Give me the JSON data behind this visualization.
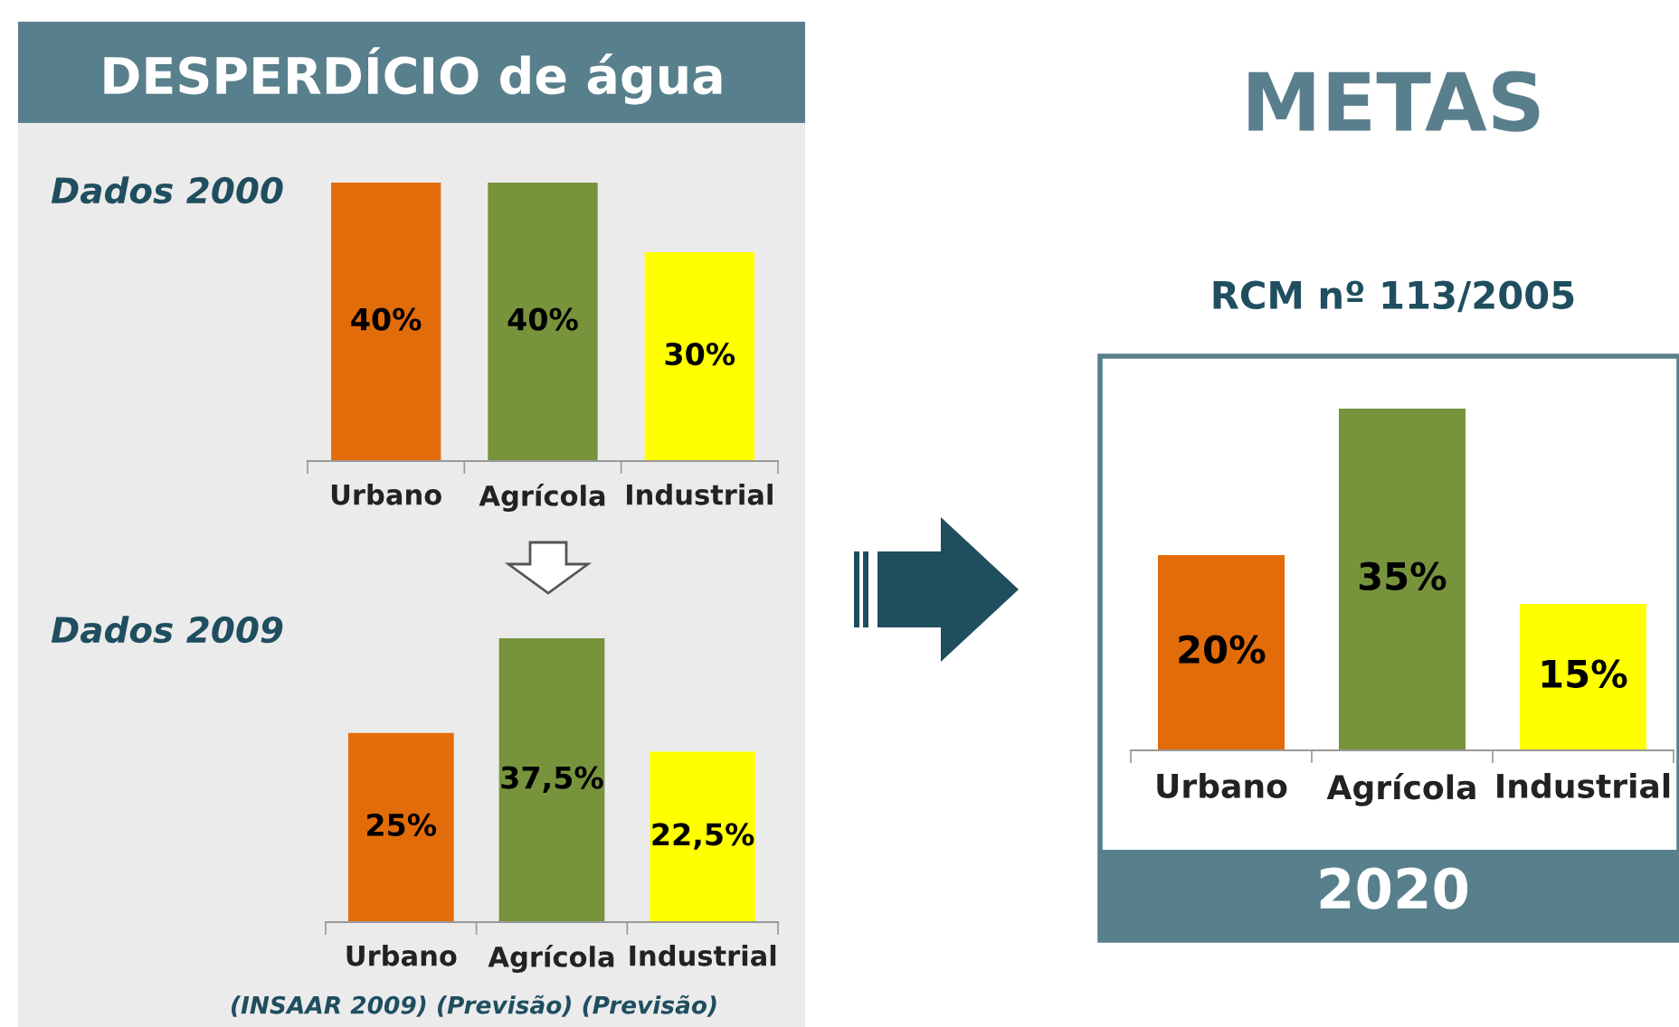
{
  "chart_data": [
    {
      "type": "bar",
      "title": "DESPERDÍCIO de água",
      "subtitle": "Dados 2000",
      "categories": [
        "Urbano",
        "Agrícola",
        "Industrial"
      ],
      "values": [
        40,
        40,
        30
      ],
      "colors": [
        "#e36c0a",
        "#77933c",
        "#ffff00"
      ],
      "value_labels": [
        "40%",
        "40%",
        "30%"
      ]
    },
    {
      "type": "bar",
      "title": "Dados 2009",
      "categories": [
        "Urbano",
        "Agrícola",
        "Industrial"
      ],
      "values": [
        25,
        37.5,
        22.5
      ],
      "colors": [
        "#e36c0a",
        "#77933c",
        "#ffff00"
      ],
      "value_labels": [
        "25%",
        "37,5%",
        "22,5%"
      ],
      "annotations": [
        "(INSAAR 2009) (Previsão) (Previsão)"
      ]
    },
    {
      "type": "bar",
      "title": "METAS",
      "subtitle": "RCM nº 113/2005",
      "xlabel": "2020",
      "categories": [
        "Urbano",
        "Agrícola",
        "Industrial"
      ],
      "values": [
        20,
        35,
        15
      ],
      "colors": [
        "#e36c0a",
        "#77933c",
        "#ffff00"
      ],
      "value_labels": [
        "20%",
        "35%",
        "15%"
      ]
    }
  ]
}
